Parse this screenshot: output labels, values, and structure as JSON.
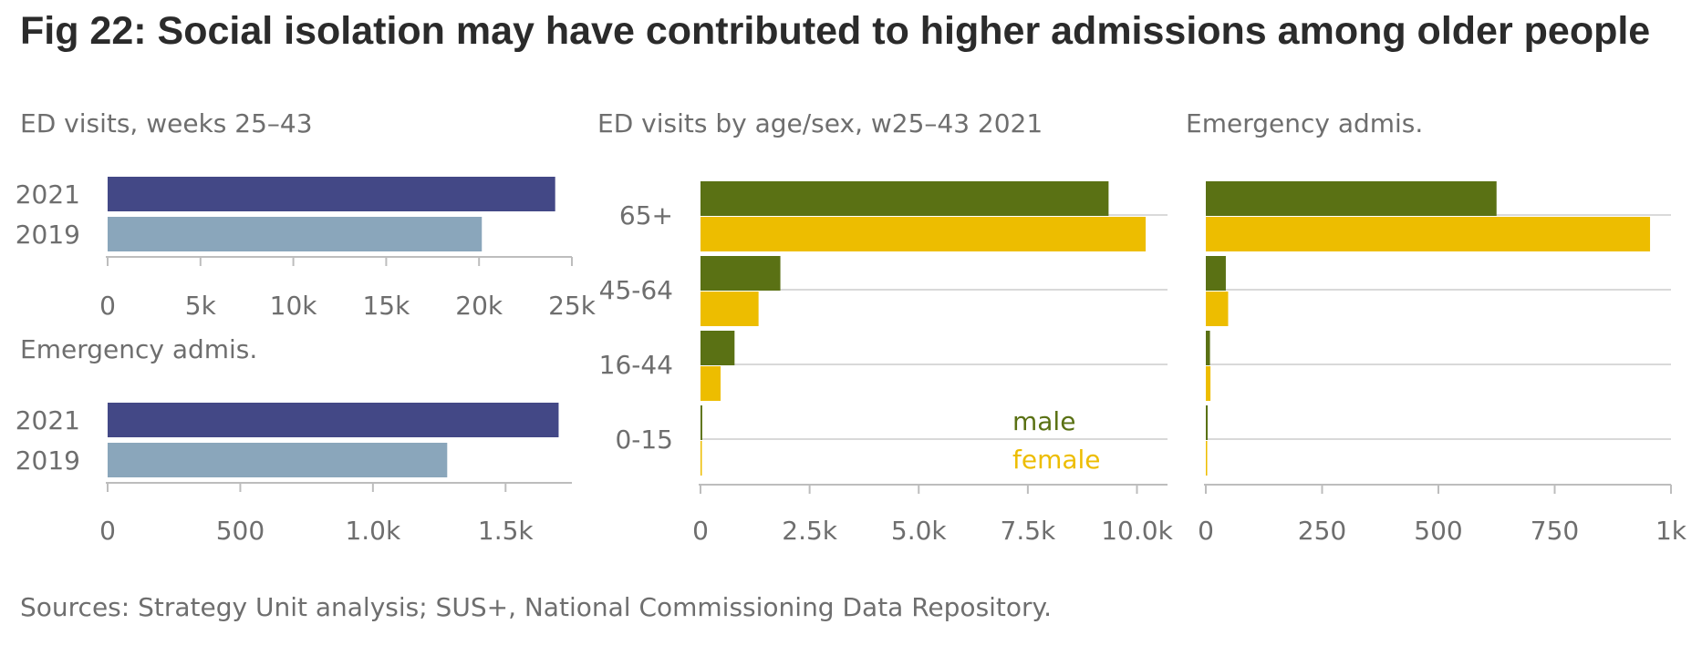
{
  "title": "Fig 22: Social isolation may have contributed to higher admissions among older people",
  "source": "Sources: Strategy Unit analysis; SUS+, National Commissioning Data Repository.",
  "colors": {
    "year_2021": "#434886",
    "year_2019": "#8aa6bb",
    "male": "#5a7114",
    "female": "#edbd00",
    "axis": "#bdbdbd",
    "grid": "#d9d9d9",
    "text": "#6e6e6e"
  },
  "chart_data": [
    {
      "id": "ed_visits_years",
      "type": "bar",
      "orientation": "horizontal",
      "title": "ED visits, weeks 25–43",
      "categories": [
        "2021",
        "2019"
      ],
      "values": [
        24100,
        20150
      ],
      "xlim": [
        0,
        25000
      ],
      "ticks": [
        0,
        5000,
        10000,
        15000,
        20000,
        25000
      ],
      "tick_labels": [
        "0",
        "5k",
        "10k",
        "15k",
        "20k",
        "25k"
      ]
    },
    {
      "id": "emergency_admissions_years",
      "type": "bar",
      "orientation": "horizontal",
      "title": "Emergency admis.",
      "categories": [
        "2021",
        "2019"
      ],
      "values": [
        1700,
        1280
      ],
      "xlim": [
        0,
        1750
      ],
      "ticks": [
        0,
        500,
        1000,
        1500
      ],
      "tick_labels": [
        "0",
        "500",
        "1.0k",
        "1.5k"
      ]
    },
    {
      "id": "ed_visits_age_sex",
      "type": "bar",
      "orientation": "horizontal",
      "title": "ED visits by age/sex, w25–43 2021",
      "categories": [
        "65+",
        "45-64",
        "16-44",
        "0-15"
      ],
      "series": [
        {
          "name": "male",
          "values": [
            9350,
            1830,
            780,
            40
          ]
        },
        {
          "name": "female",
          "values": [
            10200,
            1330,
            460,
            30
          ]
        }
      ],
      "xlim": [
        0,
        10700
      ],
      "ticks": [
        0,
        2500,
        5000,
        7500,
        10000
      ],
      "tick_labels": [
        "0",
        "2.5k",
        "5.0k",
        "7.5k",
        "10.0k"
      ],
      "grid": true
    },
    {
      "id": "emergency_admissions_age_sex",
      "type": "bar",
      "orientation": "horizontal",
      "title": "Emergency admis.",
      "categories": [
        "65+",
        "45-64",
        "16-44",
        "0-15"
      ],
      "series": [
        {
          "name": "male",
          "values": [
            625,
            43,
            9,
            4
          ]
        },
        {
          "name": "female",
          "values": [
            955,
            48,
            10,
            3
          ]
        }
      ],
      "xlim": [
        0,
        1000
      ],
      "ticks": [
        0,
        250,
        500,
        750,
        1000
      ],
      "tick_labels": [
        "0",
        "250",
        "500",
        "750",
        "1k"
      ],
      "grid": true
    }
  ]
}
